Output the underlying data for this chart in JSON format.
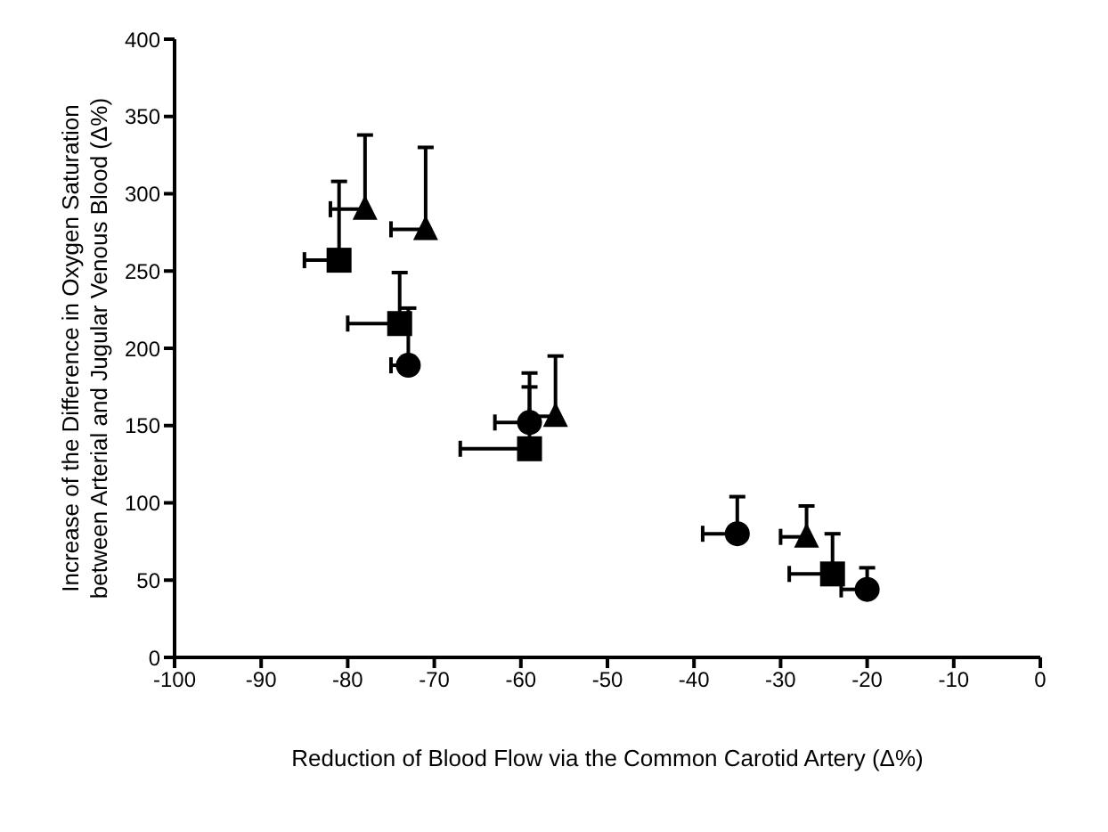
{
  "chart_data": {
    "type": "scatter",
    "xlabel": "Reduction of Blood Flow via the Common Carotid Artery (Δ%)",
    "ylabel": "Increase of the Difference in Oxygen Saturation between Arterial and Jugular Venous Blood (Δ%)",
    "xlim": [
      -100,
      0
    ],
    "xticks": [
      -100,
      -90,
      -80,
      -70,
      -60,
      -50,
      -40,
      -30,
      -20,
      -10,
      0
    ],
    "ylim": [
      0,
      400
    ],
    "yticks": [
      0,
      50,
      100,
      150,
      200,
      250,
      300,
      350,
      400
    ],
    "series": [
      {
        "color": "#000000",
        "marker": "circle",
        "x": [
          -73,
          -59,
          -35,
          -20
        ],
        "values": [
          189,
          152,
          80,
          44
        ],
        "errors": [
          [
            189,
            226
          ],
          [
            152,
            184
          ],
          [
            80,
            104
          ],
          [
            44,
            58
          ]
        ],
        "xerrors": [
          [
            -75,
            -73
          ],
          [
            -63,
            -59
          ],
          [
            -39,
            -35
          ],
          [
            -23,
            -20
          ]
        ]
      },
      {
        "color": "#000000",
        "marker": "square",
        "x": [
          -81,
          -74,
          -59,
          -24
        ],
        "values": [
          257,
          216,
          135,
          54
        ],
        "errors": [
          [
            257,
            308
          ],
          [
            216,
            249
          ],
          [
            135,
            175
          ],
          [
            54,
            80
          ]
        ],
        "xerrors": [
          [
            -85,
            -81
          ],
          [
            -80,
            -74
          ],
          [
            -67,
            -59
          ],
          [
            -29,
            -24
          ]
        ]
      },
      {
        "color": "#000000",
        "marker": "triangle",
        "x": [
          -78,
          -71,
          -56,
          -27
        ],
        "values": [
          290,
          277,
          156,
          78
        ],
        "errors": [
          [
            290,
            338
          ],
          [
            277,
            330
          ],
          [
            156,
            195
          ],
          [
            78,
            98
          ]
        ],
        "xerrors": [
          [
            -82,
            -78
          ],
          [
            -75,
            -71
          ],
          [
            -59,
            -56
          ],
          [
            -30,
            -27
          ]
        ]
      }
    ]
  }
}
